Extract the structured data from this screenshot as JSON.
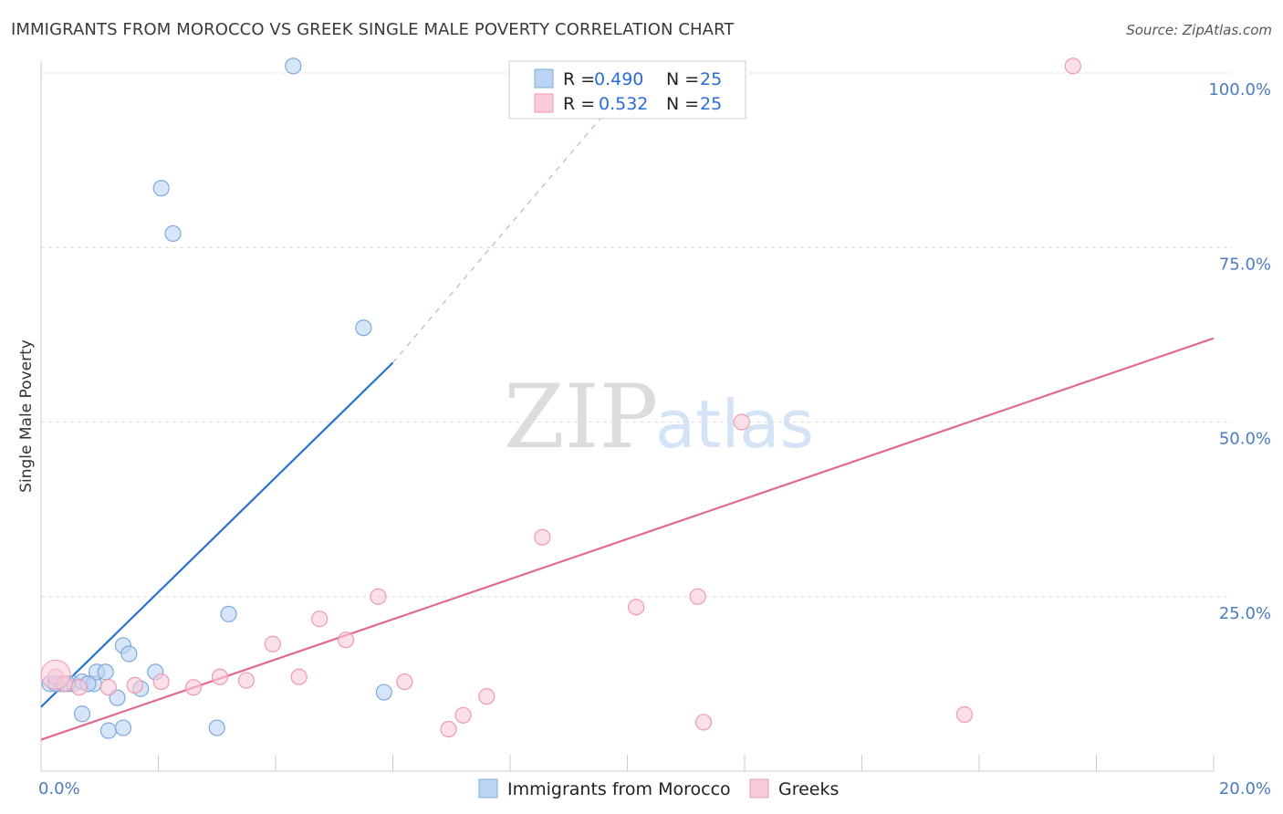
{
  "title": "IMMIGRANTS FROM MOROCCO VS GREEK SINGLE MALE POVERTY CORRELATION CHART",
  "source": "Source: ZipAtlas.com",
  "watermark": {
    "zip": "ZIP",
    "atlas": "atlas"
  },
  "colors": {
    "blue_fill": "#bcd4f4",
    "blue_stroke": "#7fa8dc",
    "blue_line": "#2a72d0",
    "pink_fill": "#f9cbd8",
    "pink_stroke": "#ee9ab2",
    "pink_line": "#e06a92",
    "grid": "#dddddd",
    "tick_text": "#4a7cc0"
  },
  "legend": {
    "items": [
      {
        "r_label": "R =",
        "r_value": "0.490",
        "n_label": "N =",
        "n_value": "25",
        "color": "blue"
      },
      {
        "r_label": "R =",
        "r_value": "0.532",
        "n_label": "N =",
        "n_value": "25",
        "color": "pink"
      }
    ]
  },
  "bottom_legend": [
    "Immigrants from Morocco",
    "Greeks"
  ],
  "chart_data": {
    "type": "scatter",
    "ylabel": "Single Male Poverty",
    "xlabel": "",
    "xlim": [
      0,
      20
    ],
    "ylim": [
      0,
      105
    ],
    "x_tick_labels": [
      {
        "value": 0,
        "label": "0.0%"
      },
      {
        "value": 20,
        "label": "20.0%"
      }
    ],
    "x_minor_ticks": [
      2,
      4,
      6,
      8,
      10,
      12,
      14,
      16,
      18,
      20
    ],
    "y_ticks": [
      {
        "value": 100,
        "label": "100.0%"
      },
      {
        "value": 75,
        "label": "75.0%"
      },
      {
        "value": 50,
        "label": "50.0%"
      },
      {
        "value": 25,
        "label": "25.0%"
      }
    ],
    "grid": "horizontal dashed",
    "legend_placement": "top-center",
    "series": [
      {
        "name": "Immigrants from Morocco",
        "color": "blue",
        "points": [
          [
            0.15,
            12.5
          ],
          [
            0.35,
            12.5
          ],
          [
            0.55,
            12.5
          ],
          [
            0.7,
            12.8
          ],
          [
            0.9,
            12.5
          ],
          [
            0.7,
            8.2
          ],
          [
            1.15,
            5.8
          ],
          [
            1.4,
            6.2
          ],
          [
            3.0,
            6.2
          ],
          [
            1.3,
            10.5
          ],
          [
            0.95,
            14.2
          ],
          [
            1.1,
            14.2
          ],
          [
            1.4,
            18.0
          ],
          [
            1.5,
            16.8
          ],
          [
            1.7,
            11.8
          ],
          [
            1.95,
            14.2
          ],
          [
            3.2,
            22.5
          ],
          [
            5.85,
            11.3
          ],
          [
            2.05,
            83.5
          ],
          [
            2.25,
            77.0
          ],
          [
            4.3,
            101.0
          ],
          [
            5.5,
            63.5
          ],
          [
            0.25,
            12.5
          ],
          [
            0.45,
            12.5
          ],
          [
            0.8,
            12.5
          ]
        ],
        "trend": {
          "x": [
            0,
            6.0
          ],
          "y": [
            9.2,
            58.5
          ]
        },
        "trend_extension": {
          "x": [
            6.0,
            10.3
          ],
          "y": [
            58.5,
            101.0
          ]
        }
      },
      {
        "name": "Greeks",
        "color": "pink",
        "points": [
          [
            0.25,
            13.5
          ],
          [
            0.65,
            12.0
          ],
          [
            1.15,
            12.0
          ],
          [
            1.6,
            12.3
          ],
          [
            2.05,
            12.8
          ],
          [
            2.6,
            12.0
          ],
          [
            3.05,
            13.5
          ],
          [
            3.5,
            13.0
          ],
          [
            3.95,
            18.2
          ],
          [
            4.4,
            13.5
          ],
          [
            4.75,
            21.8
          ],
          [
            5.2,
            18.8
          ],
          [
            5.75,
            25.0
          ],
          [
            6.2,
            12.8
          ],
          [
            6.95,
            6.0
          ],
          [
            7.2,
            8.0
          ],
          [
            7.6,
            10.7
          ],
          [
            8.55,
            33.5
          ],
          [
            10.15,
            23.5
          ],
          [
            11.2,
            25.0
          ],
          [
            11.3,
            7.0
          ],
          [
            11.95,
            50.0
          ],
          [
            15.75,
            8.1
          ],
          [
            17.6,
            101.0
          ],
          [
            0.4,
            12.5
          ]
        ],
        "trend": {
          "x": [
            0,
            20
          ],
          "y": [
            4.5,
            62.0
          ]
        }
      }
    ]
  }
}
